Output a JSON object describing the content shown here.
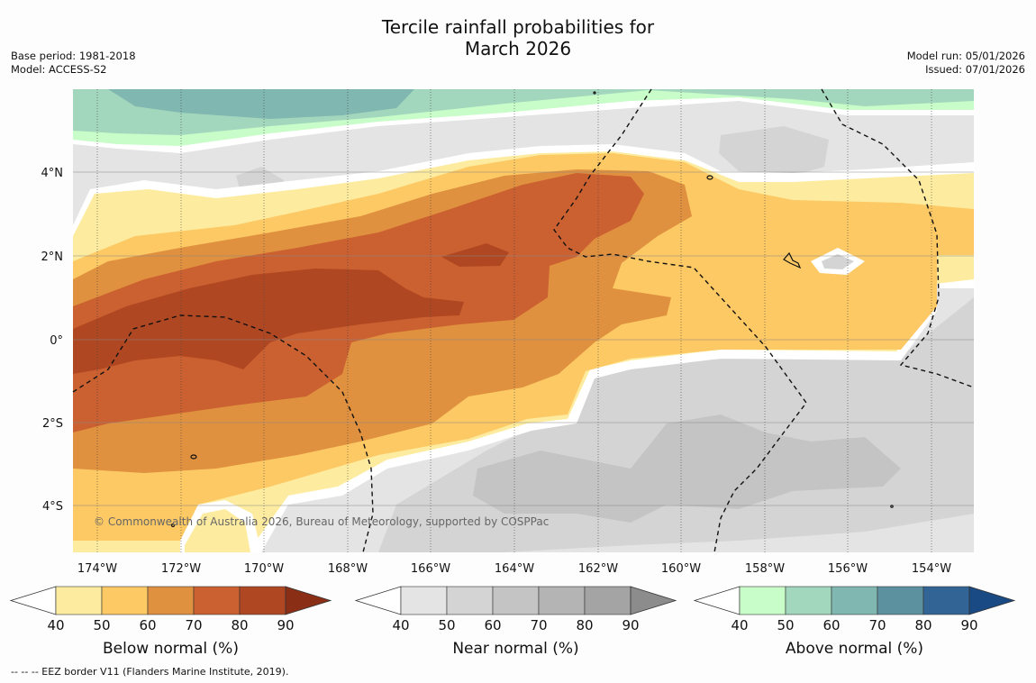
{
  "title": {
    "line1": "Tercile rainfall probabilities for",
    "line2": "March 2026"
  },
  "meta": {
    "base_period": "Base period: 1981-2018",
    "model": "Model: ACCESS-S2",
    "model_run": "Model run: 05/01/2026",
    "issued": "Issued: 07/01/2026"
  },
  "copyright": "© Commonwealth of Australia 2026, Bureau of Meteorology, supported by COSPPac",
  "footnote": "--  --  -- EEZ border V11 (Flanders Marine Institute, 2019).",
  "map": {
    "lon_labels": [
      "174°W",
      "172°W",
      "170°W",
      "168°W",
      "166°W",
      "164°W",
      "162°W",
      "160°W",
      "158°W",
      "156°W",
      "154°W"
    ],
    "lat_labels": [
      "4°N",
      "2°N",
      "0°",
      "2°S",
      "4°S"
    ]
  },
  "legends": [
    {
      "name": "below",
      "title": "Below normal (%)",
      "ticks": [
        "40",
        "50",
        "60",
        "70",
        "80",
        "90"
      ],
      "colors": [
        "#fdeca0",
        "#fdc964",
        "#e0913f",
        "#cb6130",
        "#af4722",
        "#8a2f16"
      ]
    },
    {
      "name": "near",
      "title": "Near normal (%)",
      "ticks": [
        "40",
        "50",
        "60",
        "70",
        "80",
        "90"
      ],
      "colors": [
        "#e4e4e4",
        "#d4d4d4",
        "#c4c4c4",
        "#b4b4b4",
        "#a4a4a4",
        "#8c8c8c"
      ]
    },
    {
      "name": "above",
      "title": "Above normal (%)",
      "ticks": [
        "40",
        "50",
        "60",
        "70",
        "80",
        "90"
      ],
      "colors": [
        "#c8fcc8",
        "#a3d7bd",
        "#80b7b0",
        "#5c92a0",
        "#326496",
        "#1a4a84"
      ]
    }
  ]
}
